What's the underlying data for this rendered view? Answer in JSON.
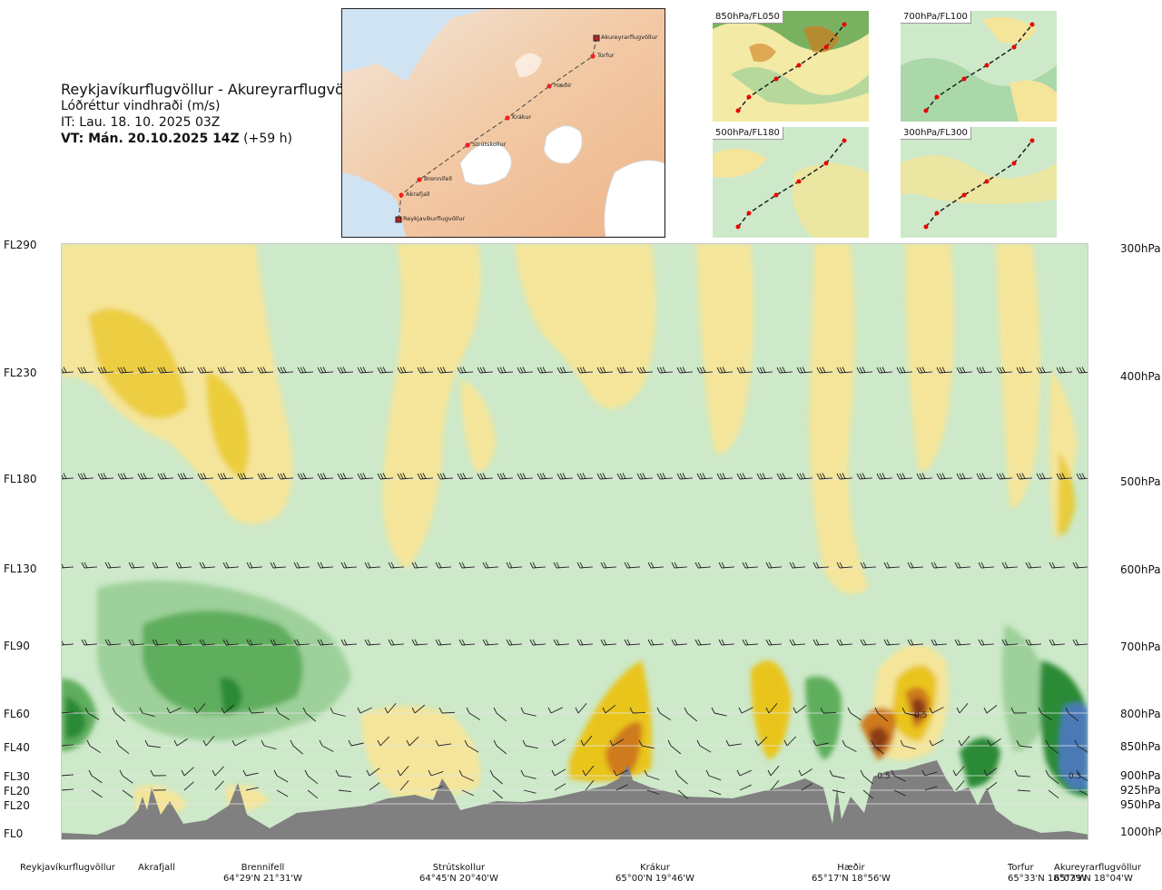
{
  "header": {
    "route": "Reykjavíkurflugvöllur - Akureyrarflugvöllur",
    "variable": "Lóðréttur vindhraði (m/s)",
    "issue_time": "IT: Lau. 18. 10. 2025 03Z",
    "valid_time_bold": "VT: Mán. 20.10.2025 14Z",
    "valid_time_offset": "(+59 h)"
  },
  "route_map": {
    "points": [
      {
        "name": "Akureyrarflugvöllur"
      },
      {
        "name": "Torfur"
      },
      {
        "name": "Hæðir"
      },
      {
        "name": "Krákur"
      },
      {
        "name": "Strútskollur"
      },
      {
        "name": "Brennifell"
      },
      {
        "name": "Akrafjall"
      },
      {
        "name": "Reykjavíkurflugvöllur"
      }
    ]
  },
  "mini_maps": [
    {
      "label": "850hPa/FL050"
    },
    {
      "label": "700hPa/FL100"
    },
    {
      "label": "500hPa/FL180"
    },
    {
      "label": "300hPa/FL300"
    }
  ],
  "chart_data": {
    "type": "heatmap",
    "title": "Lóðréttur vindhraði (m/s)",
    "flight_levels": [
      "FL290",
      "FL230",
      "FL180",
      "FL130",
      "FL90",
      "FL60",
      "FL40",
      "FL30",
      "FL20",
      "FL20",
      "FL0"
    ],
    "pressure_levels": [
      "300hPa",
      "400hPa",
      "500hPa",
      "600hPa",
      "700hPa",
      "800hPa",
      "850hPa",
      "900hPa",
      "925hPa",
      "950hPa",
      "1000hPa"
    ],
    "stations": [
      {
        "name": "Reykjavíkurflugvöllur",
        "coord": ""
      },
      {
        "name": "Akrafjall",
        "coord": ""
      },
      {
        "name": "Brennifell",
        "coord": "64°29'N 21°31'W"
      },
      {
        "name": "Strútskollur",
        "coord": "64°45'N 20°40'W"
      },
      {
        "name": "Krákur",
        "coord": "65°00'N 19°46'W"
      },
      {
        "name": "Hæðir",
        "coord": "65°17'N 18°56'W"
      },
      {
        "name": "Torfur",
        "coord": "65°33'N 18°07'W"
      },
      {
        "name": "Akureyrarflugvöllur",
        "coord": "65°39'N 18°04'W"
      }
    ],
    "contour_labels": [
      "0.5",
      "-0.5",
      "0.5"
    ],
    "colors": {
      "strong_up": "#8a3b12",
      "up3": "#cf7a1c",
      "up2": "#e9c51e",
      "up1": "#f4e59a",
      "neutral": "#fbfbe8",
      "down1": "#cde9c9",
      "down2": "#9dd09a",
      "down3": "#5fae5d",
      "down4": "#2a8a34",
      "strong_down": "#4a7ab5",
      "terrain": "#808080"
    }
  }
}
